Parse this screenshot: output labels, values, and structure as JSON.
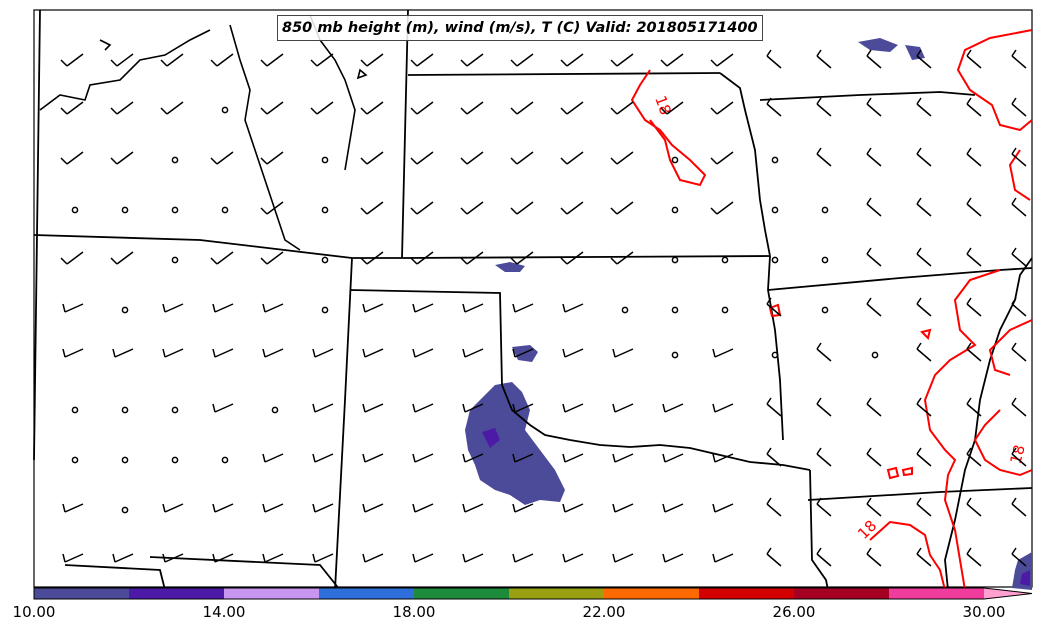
{
  "title": "850 mb height (m), wind (m/s), T (C) Valid: 201805171400",
  "colorbar": {
    "tick_labels": [
      "10.00",
      "14.00",
      "18.00",
      "22.00",
      "26.00",
      "30.00"
    ],
    "colors": [
      "#4b4b99",
      "#4d1aa8",
      "#c896f0",
      "#2e6fdc",
      "#1e8a3c",
      "#9aa012",
      "#ff6a00",
      "#d40000",
      "#a50021",
      "#f03c9c",
      "#ffa0d0"
    ]
  },
  "contour_labels": [
    "18",
    "18",
    "18"
  ],
  "colors": {
    "state_lines": "#000000",
    "isotherm": "#ff0000",
    "shading_main": "#4b4b99"
  }
}
